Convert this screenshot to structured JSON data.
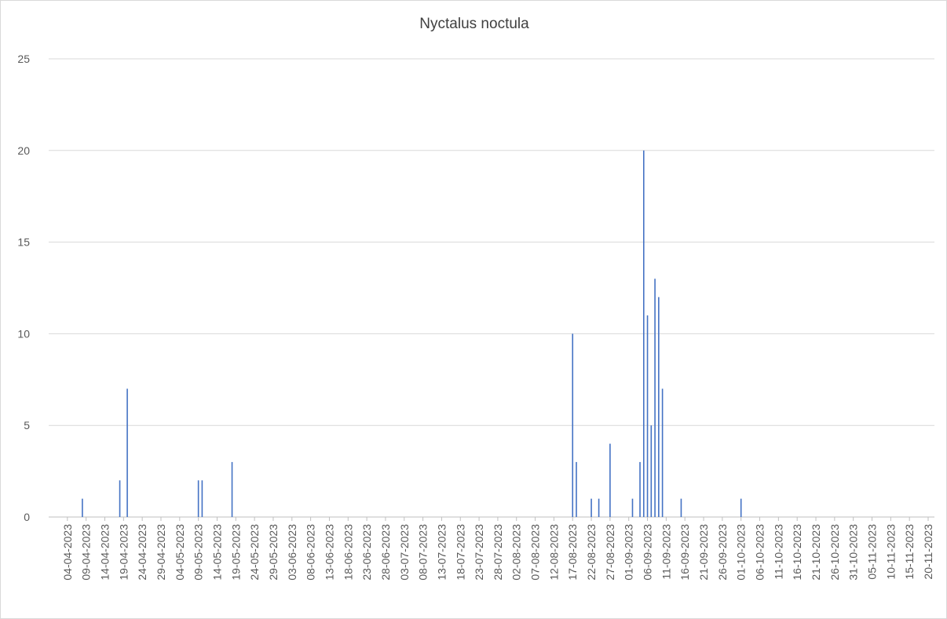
{
  "chart_data": {
    "type": "bar",
    "title": "Nyctalus noctula",
    "x": [
      "08-04-2023",
      "18-04-2023",
      "20-04-2023",
      "09-05-2023",
      "10-05-2023",
      "18-05-2023",
      "17-08-2023",
      "18-08-2023",
      "22-08-2023",
      "24-08-2023",
      "27-08-2023",
      "02-09-2023",
      "04-09-2023",
      "05-09-2023",
      "06-09-2023",
      "07-09-2023",
      "08-09-2023",
      "09-09-2023",
      "10-09-2023",
      "15-09-2023",
      "01-10-2023"
    ],
    "values": [
      1,
      2,
      7,
      2,
      2,
      3,
      10,
      3,
      1,
      1,
      4,
      1,
      3,
      20,
      11,
      5,
      13,
      12,
      7,
      1,
      1
    ],
    "color": "#4472c4",
    "xlim": [
      "30-03-2023",
      "20-11-2023"
    ],
    "xticks": [
      "04-04-2023",
      "09-04-2023",
      "14-04-2023",
      "19-04-2023",
      "24-04-2023",
      "29-04-2023",
      "04-05-2023",
      "09-05-2023",
      "14-05-2023",
      "19-05-2023",
      "24-05-2023",
      "29-05-2023",
      "03-06-2023",
      "08-06-2023",
      "13-06-2023",
      "18-06-2023",
      "23-06-2023",
      "28-06-2023",
      "03-07-2023",
      "08-07-2023",
      "13-07-2023",
      "18-07-2023",
      "23-07-2023",
      "28-07-2023",
      "02-08-2023",
      "07-08-2023",
      "12-08-2023",
      "17-08-2023",
      "22-08-2023",
      "27-08-2023",
      "01-09-2023",
      "06-09-2023",
      "11-09-2023",
      "16-09-2023",
      "21-09-2023",
      "26-09-2023",
      "01-10-2023",
      "06-10-2023",
      "11-10-2023",
      "16-10-2023",
      "21-10-2023",
      "26-10-2023",
      "31-10-2023",
      "05-11-2023",
      "10-11-2023",
      "15-11-2023",
      "20-11-2023"
    ],
    "ylim": [
      0,
      25
    ],
    "yticks": [
      0,
      5,
      10,
      15,
      20,
      25
    ],
    "grid": true
  }
}
